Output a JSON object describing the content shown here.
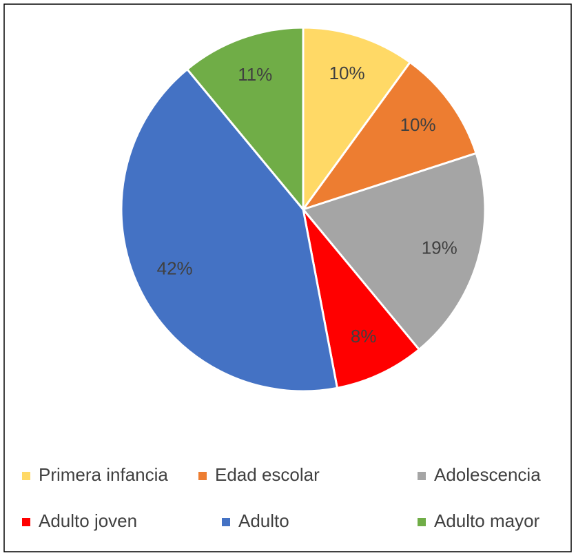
{
  "chart_data": {
    "type": "pie",
    "categories": [
      "Primera infancia",
      "Edad escolar",
      "Adolescencia",
      "Adulto joven",
      "Adulto",
      "Adulto mayor"
    ],
    "values": [
      10,
      10,
      19,
      8,
      42,
      11
    ],
    "value_labels": [
      "10%",
      "10%",
      "19%",
      "8%",
      "42%",
      "11%"
    ],
    "colors": [
      "#ffd966",
      "#ed7d31",
      "#a5a5a5",
      "#ff0000",
      "#4472c4",
      "#70ad47"
    ],
    "legend": "bottom"
  }
}
